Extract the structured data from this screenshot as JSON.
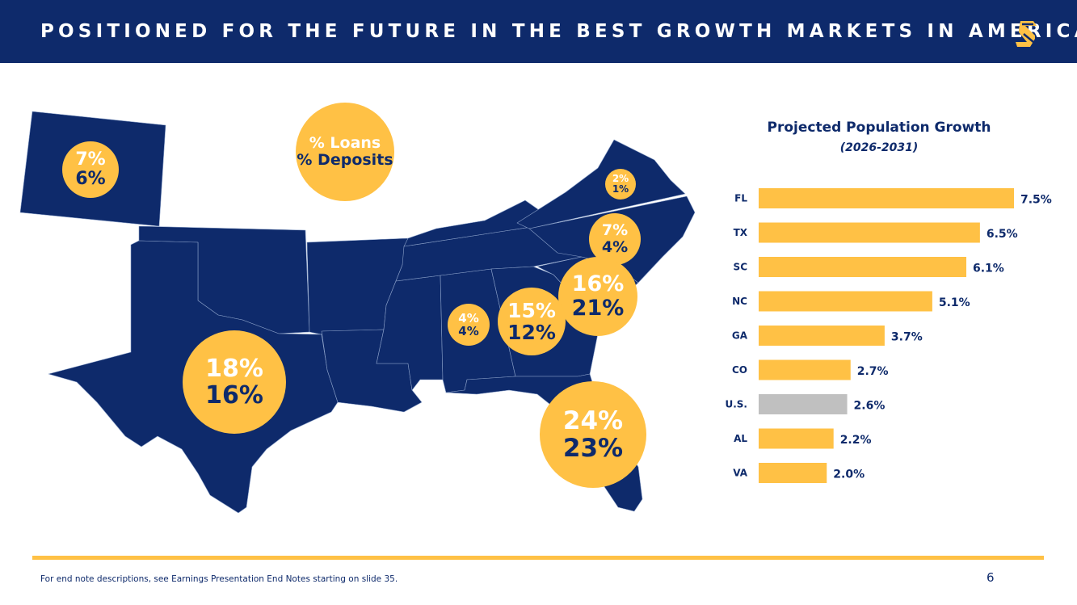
{
  "header": {
    "title": "POSITIONED FOR THE FUTURE IN THE BEST GROWTH MARKETS IN AMERICA",
    "logo_icon": "company-s-logo"
  },
  "colors": {
    "navy": "#0e2a6b",
    "gold": "#ffc145",
    "gray": "#c0c0c0"
  },
  "legend": {
    "loans": "% Loans",
    "deposits": "% Deposits"
  },
  "states": [
    {
      "state": "CO",
      "loans": "7%",
      "deposits": "6%"
    },
    {
      "state": "VA",
      "loans": "2%",
      "deposits": "1%"
    },
    {
      "state": "NC",
      "loans": "7%",
      "deposits": "4%"
    },
    {
      "state": "SC",
      "loans": "16%",
      "deposits": "21%"
    },
    {
      "state": "GA",
      "loans": "15%",
      "deposits": "12%"
    },
    {
      "state": "AL",
      "loans": "4%",
      "deposits": "4%"
    },
    {
      "state": "TX",
      "loans": "18%",
      "deposits": "16%"
    },
    {
      "state": "FL",
      "loans": "24%",
      "deposits": "23%"
    }
  ],
  "chart_data": {
    "type": "bar",
    "orientation": "horizontal",
    "title": "Projected Population Growth",
    "subtitle": "(2026-2031)",
    "categories": [
      "FL",
      "TX",
      "SC",
      "NC",
      "GA",
      "CO",
      "U.S.",
      "AL",
      "VA"
    ],
    "values": [
      7.5,
      6.5,
      6.1,
      5.1,
      3.7,
      2.7,
      2.6,
      2.2,
      2.0
    ],
    "labels": [
      "7.5%",
      "6.5%",
      "6.1%",
      "5.1%",
      "3.7%",
      "2.7%",
      "2.6%",
      "2.2%",
      "2.0%"
    ],
    "highlight": {
      "category": "U.S.",
      "color": "#c0c0c0"
    },
    "bar_color": "#ffc145",
    "xlim": [
      0,
      7.5
    ],
    "grid": false
  },
  "footer": {
    "note": "For end note descriptions, see Earnings Presentation End Notes starting on slide 35.",
    "page": "6"
  }
}
